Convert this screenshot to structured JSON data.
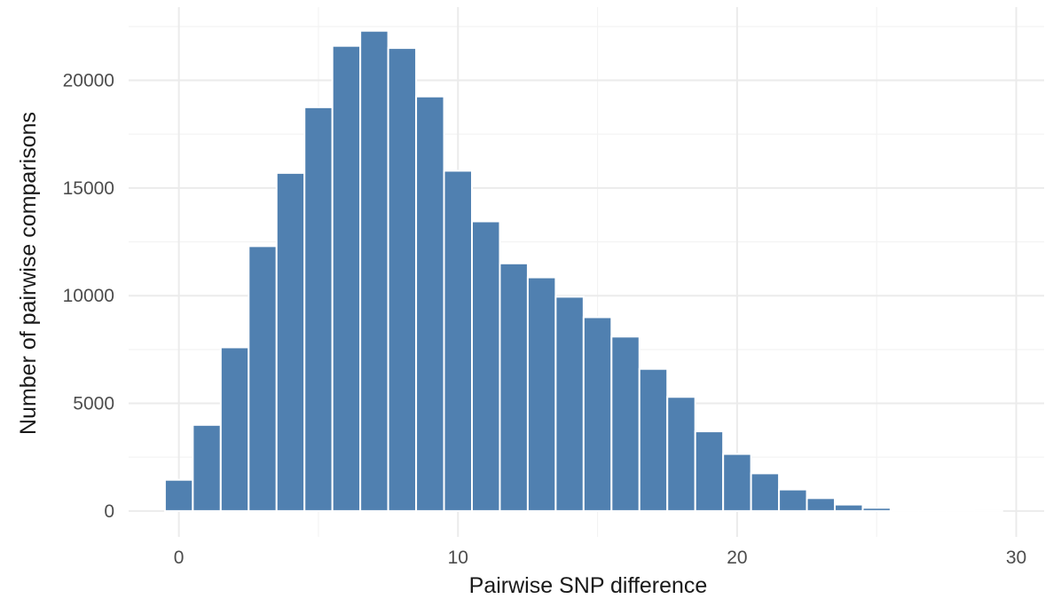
{
  "chart_data": {
    "type": "bar",
    "title": "",
    "xlabel": "Pairwise SNP difference",
    "ylabel": "Number of pairwise comparisons",
    "x": [
      0,
      1,
      2,
      3,
      4,
      5,
      6,
      7,
      8,
      9,
      10,
      11,
      12,
      13,
      14,
      15,
      16,
      17,
      18,
      19,
      20,
      21,
      22,
      23,
      24,
      25,
      26,
      27,
      28,
      29
    ],
    "values": [
      1450,
      4000,
      7600,
      12300,
      15700,
      18750,
      21600,
      22300,
      21500,
      19250,
      15800,
      13450,
      11500,
      10850,
      9950,
      9000,
      8100,
      6600,
      5300,
      3700,
      2650,
      1750,
      1000,
      600,
      300,
      150,
      80,
      40,
      15,
      5
    ],
    "xlim": [
      -1.8,
      31.0
    ],
    "ylim": [
      -1200,
      23400
    ],
    "xticks": [
      0,
      10,
      20,
      30
    ],
    "xtick_labels": [
      "0",
      "10",
      "20",
      "30"
    ],
    "yticks": [
      0,
      5000,
      10000,
      15000,
      20000
    ],
    "ytick_labels": [
      "0",
      "5000",
      "10000",
      "15000",
      "20000"
    ],
    "bar_color": "#5080b0",
    "grid": true,
    "legend": "none"
  }
}
